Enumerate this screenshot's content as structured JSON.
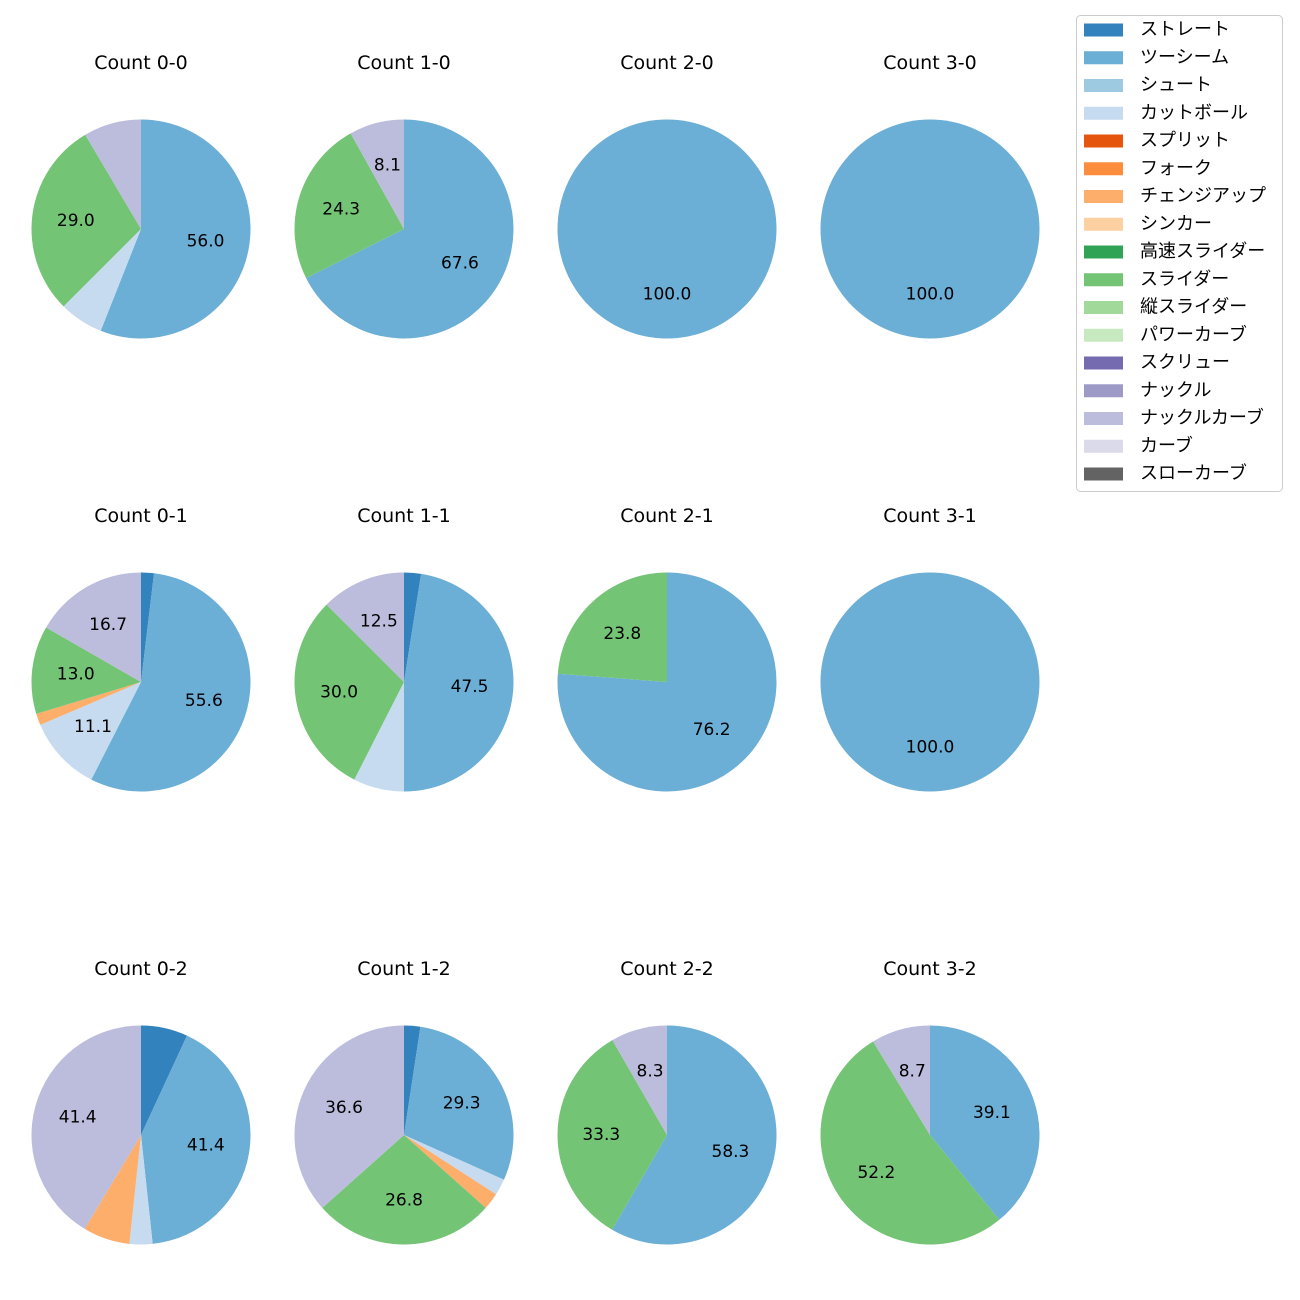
{
  "legend": {
    "entries": [
      {
        "name": "ストレート",
        "color": "#3182bd"
      },
      {
        "name": "ツーシーム",
        "color": "#6baed6"
      },
      {
        "name": "シュート",
        "color": "#9ecae1"
      },
      {
        "name": "カットボール",
        "color": "#c6dbef"
      },
      {
        "name": "スプリット",
        "color": "#e6550d"
      },
      {
        "name": "フォーク",
        "color": "#fd8d3c"
      },
      {
        "name": "チェンジアップ",
        "color": "#fdae6b"
      },
      {
        "name": "シンカー",
        "color": "#fdd0a2"
      },
      {
        "name": "高速スライダー",
        "color": "#31a354"
      },
      {
        "name": "スライダー",
        "color": "#74c476"
      },
      {
        "name": "縦スライダー",
        "color": "#a1d99b"
      },
      {
        "name": "パワーカーブ",
        "color": "#c7e9c0"
      },
      {
        "name": "スクリュー",
        "color": "#756bb1"
      },
      {
        "name": "ナックル",
        "color": "#9e9ac8"
      },
      {
        "name": "ナックルカーブ",
        "color": "#bcbddc"
      },
      {
        "name": "カーブ",
        "color": "#dadaeb"
      },
      {
        "name": "スローカーブ",
        "color": "#636363"
      }
    ]
  },
  "chart_data": [
    {
      "type": "pie",
      "title": "Count 0-0",
      "slices": [
        {
          "label": "ツーシーム",
          "value": 56.0,
          "text": "56.0"
        },
        {
          "label": "カットボール",
          "value": 6.5
        },
        {
          "label": "スライダー",
          "value": 29.0,
          "text": "29.0"
        },
        {
          "label": "ナックルカーブ",
          "value": 8.5
        }
      ]
    },
    {
      "type": "pie",
      "title": "Count 1-0",
      "slices": [
        {
          "label": "ツーシーム",
          "value": 67.6,
          "text": "67.6"
        },
        {
          "label": "スライダー",
          "value": 24.3,
          "text": "24.3"
        },
        {
          "label": "ナックルカーブ",
          "value": 8.1,
          "text": "8.1"
        }
      ]
    },
    {
      "type": "pie",
      "title": "Count 2-0",
      "slices": [
        {
          "label": "ツーシーム",
          "value": 100.0,
          "text": "100.0"
        }
      ]
    },
    {
      "type": "pie",
      "title": "Count 3-0",
      "slices": [
        {
          "label": "ツーシーム",
          "value": 100.0,
          "text": "100.0"
        }
      ]
    },
    {
      "type": "pie",
      "title": "Count 0-1",
      "slices": [
        {
          "label": "ストレート",
          "value": 1.9
        },
        {
          "label": "ツーシーム",
          "value": 55.6,
          "text": "55.6"
        },
        {
          "label": "カットボール",
          "value": 11.1,
          "text": "11.1"
        },
        {
          "label": "チェンジアップ",
          "value": 1.7
        },
        {
          "label": "スライダー",
          "value": 13.0,
          "text": "13.0"
        },
        {
          "label": "ナックルカーブ",
          "value": 16.7,
          "text": "16.7"
        }
      ]
    },
    {
      "type": "pie",
      "title": "Count 1-1",
      "slices": [
        {
          "label": "ストレート",
          "value": 2.5
        },
        {
          "label": "ツーシーム",
          "value": 47.5,
          "text": "47.5"
        },
        {
          "label": "カットボール",
          "value": 7.5
        },
        {
          "label": "スライダー",
          "value": 30.0,
          "text": "30.0"
        },
        {
          "label": "ナックルカーブ",
          "value": 12.5,
          "text": "12.5"
        }
      ]
    },
    {
      "type": "pie",
      "title": "Count 2-1",
      "slices": [
        {
          "label": "ツーシーム",
          "value": 76.2,
          "text": "76.2"
        },
        {
          "label": "スライダー",
          "value": 23.8,
          "text": "23.8"
        }
      ]
    },
    {
      "type": "pie",
      "title": "Count 3-1",
      "slices": [
        {
          "label": "ツーシーム",
          "value": 100.0,
          "text": "100.0"
        }
      ]
    },
    {
      "type": "pie",
      "title": "Count 0-2",
      "slices": [
        {
          "label": "ストレート",
          "value": 6.9
        },
        {
          "label": "ツーシーム",
          "value": 41.4,
          "text": "41.4"
        },
        {
          "label": "カットボール",
          "value": 3.4
        },
        {
          "label": "チェンジアップ",
          "value": 6.9
        },
        {
          "label": "ナックルカーブ",
          "value": 41.4,
          "text": "41.4"
        }
      ]
    },
    {
      "type": "pie",
      "title": "Count 1-2",
      "slices": [
        {
          "label": "ストレート",
          "value": 2.4
        },
        {
          "label": "ツーシーム",
          "value": 29.3,
          "text": "29.3"
        },
        {
          "label": "カットボール",
          "value": 2.4
        },
        {
          "label": "チェンジアップ",
          "value": 2.5
        },
        {
          "label": "スライダー",
          "value": 26.8,
          "text": "26.8"
        },
        {
          "label": "ナックルカーブ",
          "value": 36.6,
          "text": "36.6"
        }
      ]
    },
    {
      "type": "pie",
      "title": "Count 2-2",
      "slices": [
        {
          "label": "ツーシーム",
          "value": 58.3,
          "text": "58.3"
        },
        {
          "label": "スライダー",
          "value": 33.3,
          "text": "33.3"
        },
        {
          "label": "ナックルカーブ",
          "value": 8.3,
          "text": "8.3"
        }
      ]
    },
    {
      "type": "pie",
      "title": "Count 3-2",
      "slices": [
        {
          "label": "ツーシーム",
          "value": 39.1,
          "text": "39.1"
        },
        {
          "label": "スライダー",
          "value": 52.2,
          "text": "52.2"
        },
        {
          "label": "ナックルカーブ",
          "value": 8.7,
          "text": "8.7"
        }
      ]
    }
  ]
}
